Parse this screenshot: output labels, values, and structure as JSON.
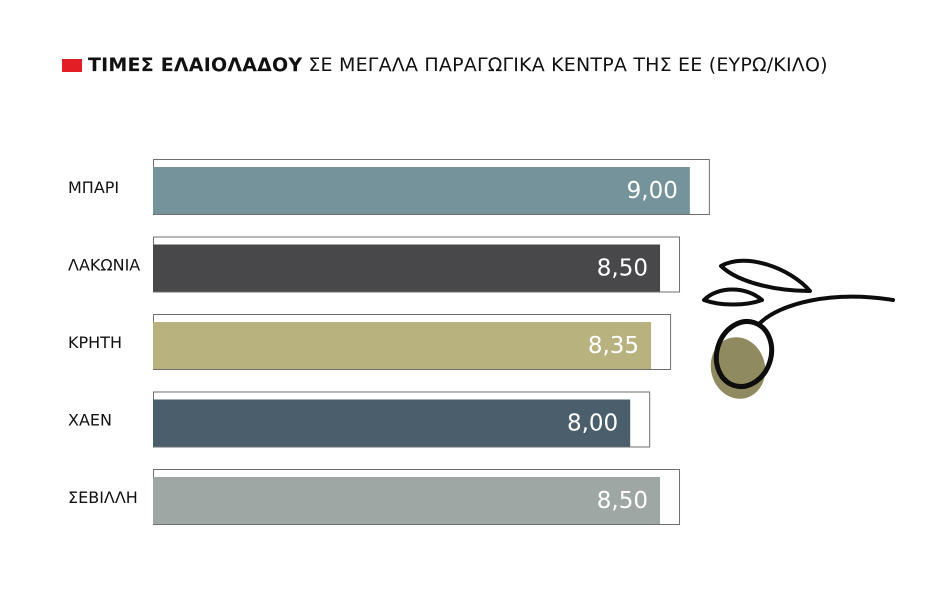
{
  "title": {
    "bold": "ΤΙΜΕΣ ΕΛΑΙΟΛΑΔΟΥ",
    "rest": "ΣΕ ΜΕΓΑΛΑ ΠΑΡΑΓΩΓΙΚΑ ΚΕΝΤΡΑ ΤΗΣ ΕΕ (ΕΥΡΩ/ΚΙΛΟ)",
    "marker_color": "#e31e24"
  },
  "chart_data": {
    "type": "bar",
    "orientation": "horizontal",
    "title": "ΤΙΜΕΣ ΕΛΑΙΟΛΑΔΟΥ ΣΕ ΜΕΓΑΛΑ ΠΑΡΑΓΩΓΙΚΑ ΚΕΝΤΡΑ ΤΗΣ ΕΕ (ΕΥΡΩ/ΚΙΛΟ)",
    "categories": [
      "ΜΠΑΡΙ",
      "ΛΑΚΩΝΙΑ",
      "ΚΡΗΤΗ",
      "ΧΑΕΝ",
      "ΣΕΒΙΛΛΗ"
    ],
    "values": [
      9.0,
      8.5,
      8.35,
      8.0,
      8.5
    ],
    "value_labels": [
      "9,00",
      "8,50",
      "8,35",
      "8,00",
      "8,50"
    ],
    "colors": [
      "#75939a",
      "#48484b",
      "#b8b27f",
      "#4a5f6b",
      "#9ea7a3"
    ],
    "xlim": [
      0,
      9.5
    ],
    "grid": false,
    "decoration": "olive-branch-icon"
  }
}
